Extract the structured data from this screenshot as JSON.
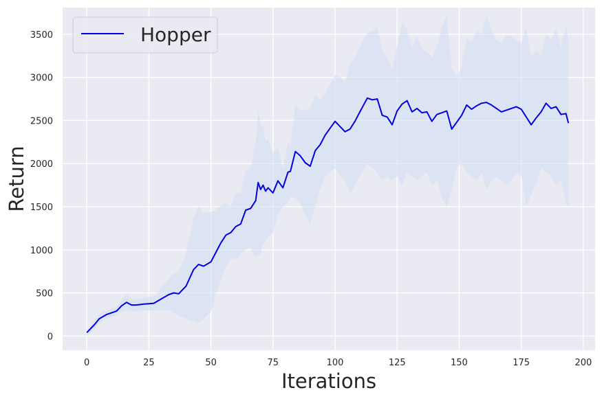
{
  "chart_data": {
    "type": "line",
    "title": "",
    "xlabel": "Iterations",
    "ylabel": "Return",
    "xlim": [
      -9.75,
      204.75
    ],
    "ylim": [
      -165,
      3810
    ],
    "xticks": [
      0,
      25,
      50,
      75,
      100,
      125,
      150,
      175,
      200
    ],
    "yticks": [
      0,
      500,
      1000,
      1500,
      2000,
      2500,
      3000,
      3500
    ],
    "grid": true,
    "legend": {
      "placement": "top-left"
    },
    "colors": {
      "line": "#0000dd",
      "band": "#cfdff4",
      "background": "#eaeaf2",
      "grid": "#ffffff"
    },
    "series": [
      {
        "name": "Hopper",
        "x": [
          0,
          3,
          5,
          8,
          10,
          12,
          14,
          16,
          18,
          20,
          23,
          25,
          27,
          30,
          33,
          35,
          37,
          40,
          43,
          45,
          47,
          50,
          52,
          54,
          56,
          58,
          60,
          62,
          64,
          66,
          68,
          69,
          70,
          71,
          72,
          73,
          75,
          77,
          79,
          81,
          82,
          84,
          86,
          88,
          90,
          92,
          94,
          96,
          98,
          100,
          102,
          104,
          106,
          108,
          110,
          113,
          115,
          117,
          119,
          121,
          123,
          125,
          127,
          129,
          131,
          133,
          135,
          137,
          139,
          141,
          143,
          145,
          147,
          149,
          151,
          153,
          155,
          157,
          159,
          161,
          163,
          165,
          167,
          169,
          171,
          173,
          175,
          177,
          179,
          181,
          183,
          185,
          187,
          189,
          191,
          193,
          194
        ],
        "y": [
          40,
          130,
          200,
          250,
          270,
          290,
          350,
          390,
          360,
          360,
          370,
          375,
          380,
          430,
          480,
          500,
          490,
          580,
          770,
          830,
          810,
          860,
          970,
          1080,
          1170,
          1200,
          1270,
          1300,
          1460,
          1480,
          1570,
          1780,
          1700,
          1750,
          1680,
          1720,
          1660,
          1800,
          1720,
          1900,
          1910,
          2140,
          2090,
          2010,
          1970,
          2150,
          2220,
          2330,
          2410,
          2490,
          2430,
          2370,
          2400,
          2490,
          2600,
          2760,
          2740,
          2750,
          2560,
          2540,
          2450,
          2610,
          2690,
          2730,
          2600,
          2640,
          2590,
          2600,
          2490,
          2570,
          2590,
          2610,
          2400,
          2480,
          2560,
          2680,
          2630,
          2670,
          2700,
          2710,
          2680,
          2640,
          2600,
          2620,
          2640,
          2660,
          2630,
          2540,
          2450,
          2530,
          2600,
          2700,
          2640,
          2660,
          2570,
          2580,
          2470
        ],
        "lower": [
          0,
          80,
          150,
          200,
          220,
          240,
          280,
          300,
          290,
          290,
          295,
          295,
          300,
          300,
          300,
          270,
          240,
          200,
          170,
          150,
          200,
          280,
          480,
          650,
          800,
          900,
          880,
          950,
          1000,
          1020,
          900,
          930,
          950,
          1080,
          1100,
          1150,
          1200,
          1400,
          1500,
          1550,
          1620,
          1600,
          1550,
          1400,
          1300,
          1500,
          1700,
          1850,
          1900,
          1950,
          1850,
          1800,
          1650,
          1750,
          1850,
          2000,
          1950,
          1900,
          1800,
          1850,
          1800,
          1850,
          1750,
          1900,
          1850,
          1800,
          1850,
          1900,
          1750,
          1800,
          1600,
          1500,
          1700,
          1950,
          2000,
          1900,
          1850,
          1800,
          1900,
          1700,
          1800,
          1850,
          1800,
          1750,
          1800,
          1900,
          1850,
          1500,
          1650,
          1750,
          1950,
          1900,
          1850,
          1750,
          1800,
          1550,
          1500
        ],
        "upper": [
          50,
          180,
          250,
          300,
          320,
          340,
          420,
          480,
          430,
          430,
          440,
          455,
          460,
          560,
          660,
          730,
          740,
          960,
          1370,
          1510,
          1420,
          1440,
          1460,
          1510,
          1540,
          1500,
          1660,
          1650,
          1920,
          1940,
          2240,
          2630,
          2450,
          2420,
          2260,
          2290,
          2120,
          2200,
          1940,
          2250,
          2200,
          2680,
          2630,
          2620,
          2640,
          2800,
          2740,
          2810,
          2920,
          3030,
          3010,
          2940,
          3150,
          3230,
          3350,
          3520,
          3530,
          3600,
          3320,
          3230,
          3100,
          3370,
          3630,
          3560,
          3350,
          3480,
          3330,
          3300,
          3230,
          3340,
          3580,
          3720,
          3100,
          3010,
          3120,
          3460,
          3410,
          3540,
          3500,
          3720,
          3560,
          3430,
          3400,
          3490,
          3480,
          3420,
          3410,
          3580,
          3250,
          3310,
          3250,
          3500,
          3430,
          3570,
          3340,
          3610,
          3440
        ]
      }
    ]
  }
}
